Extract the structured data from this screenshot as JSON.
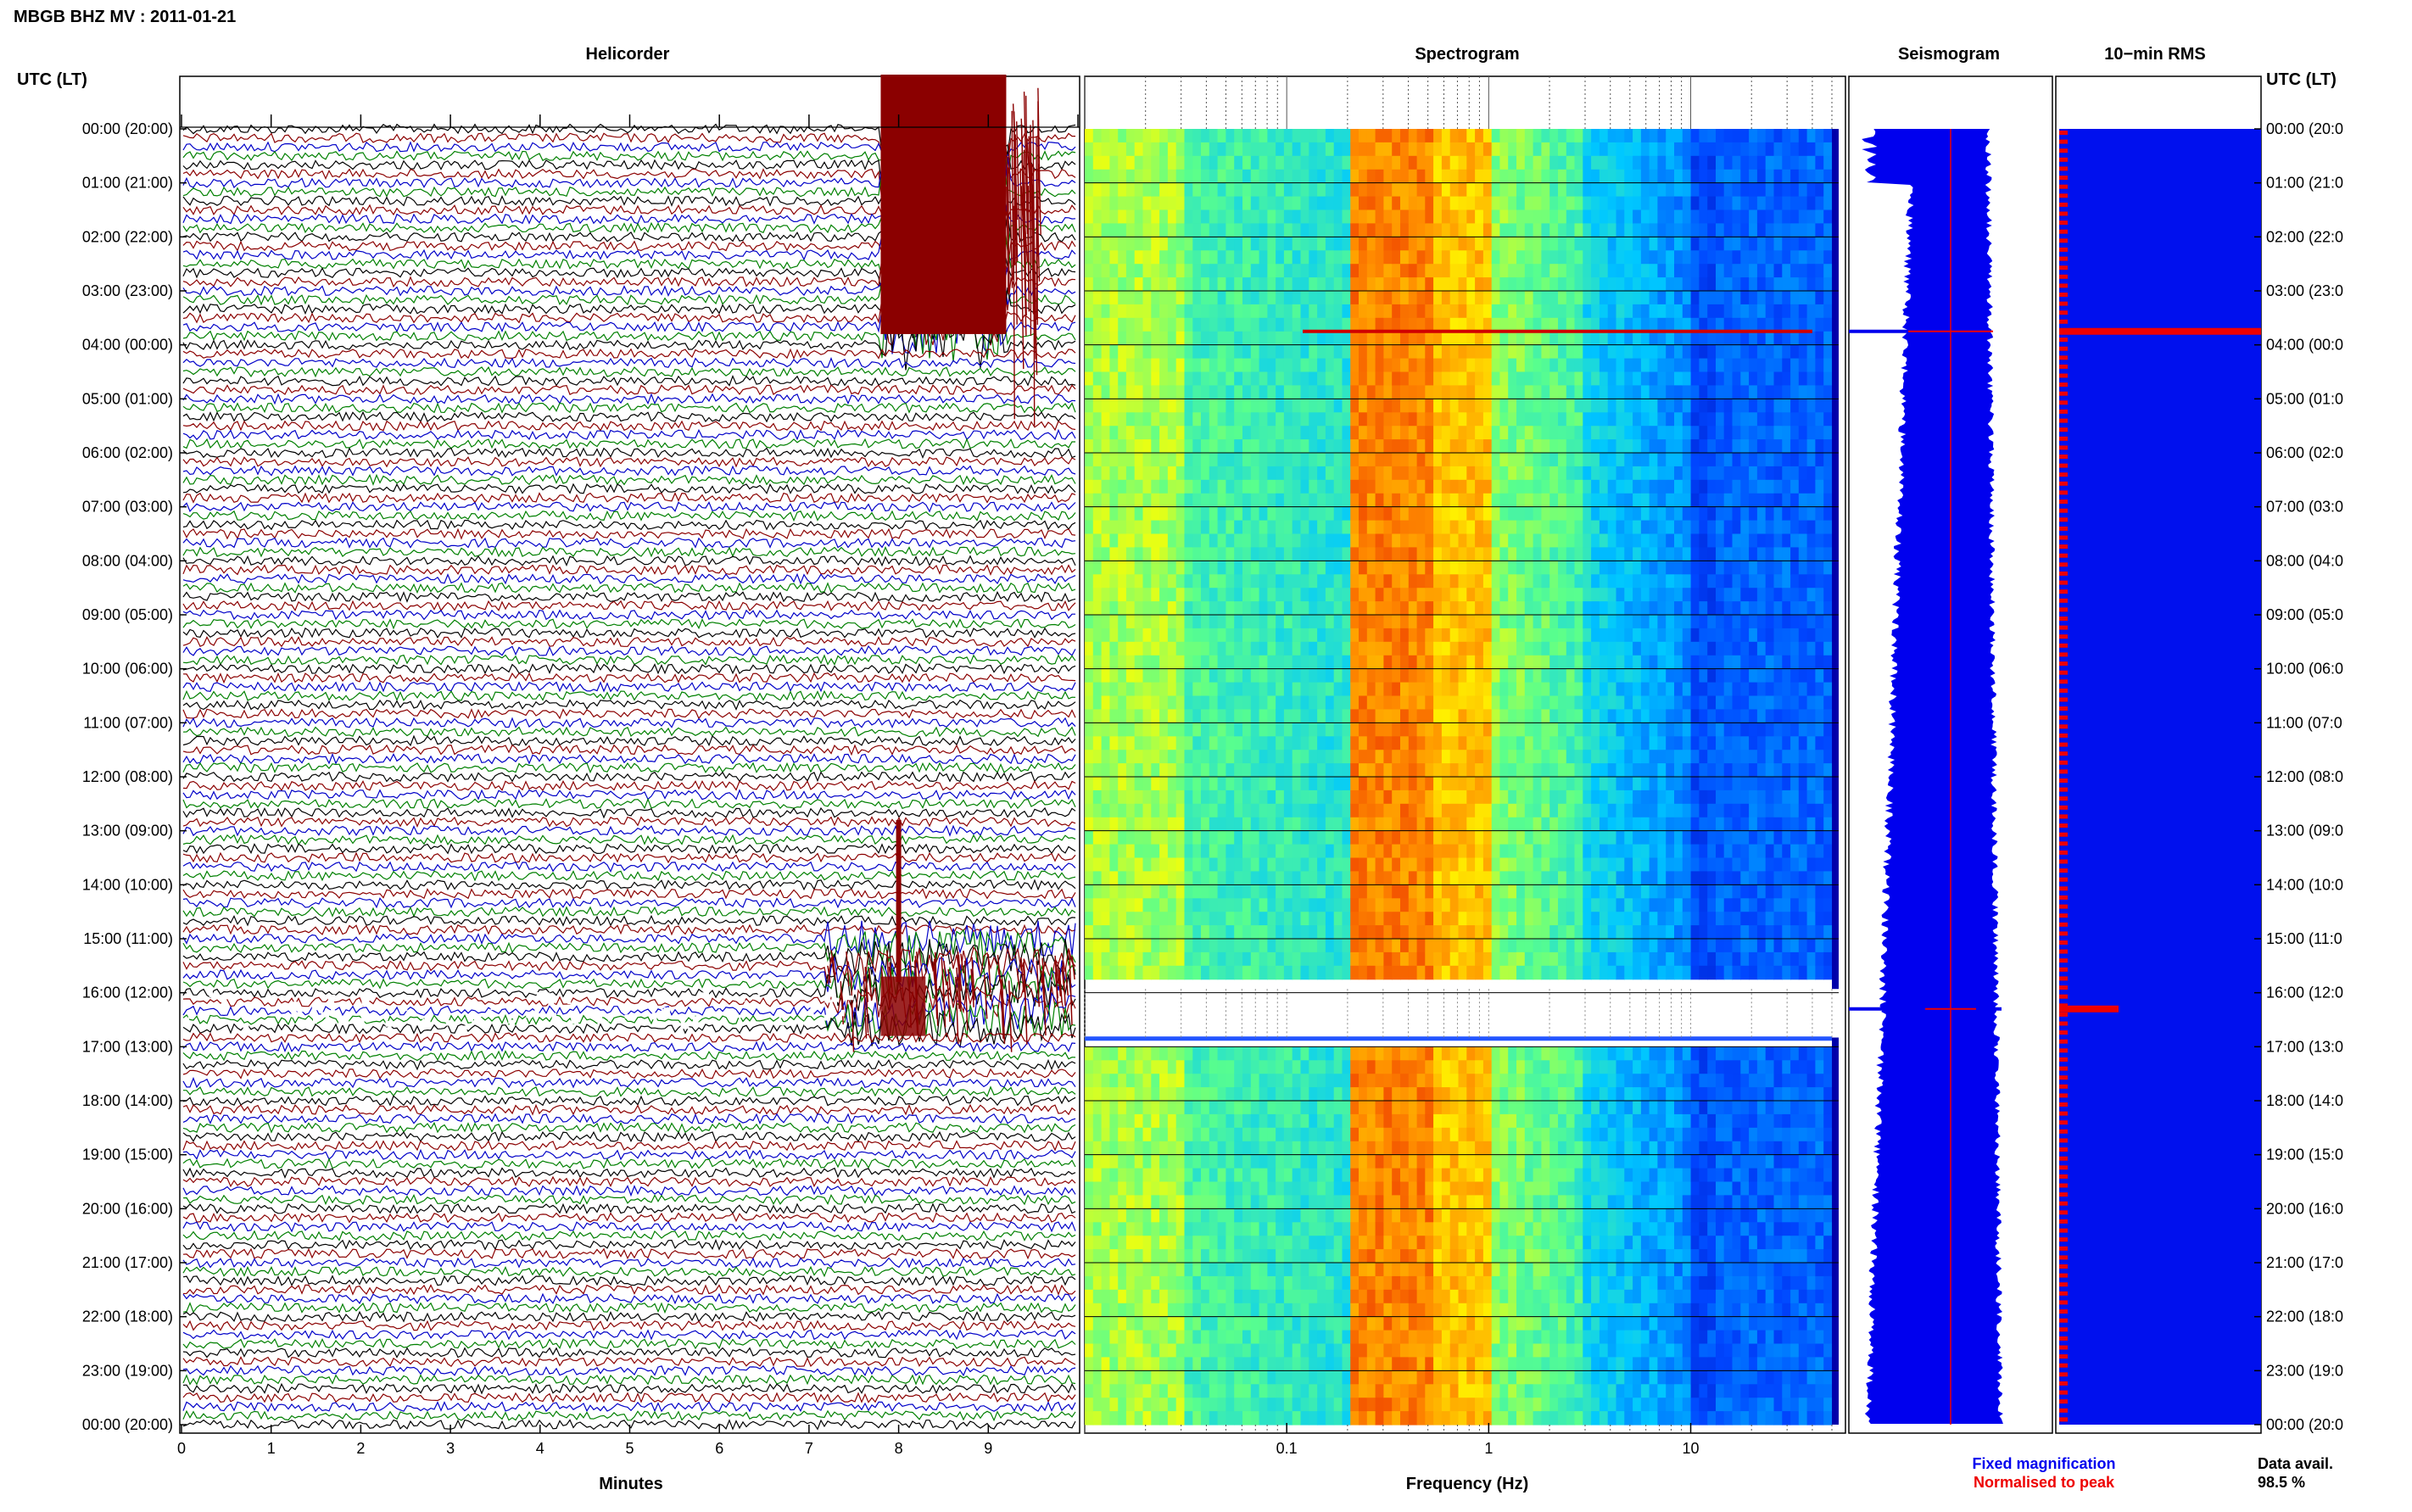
{
  "title": "MBGB BHZ MV : 2011-01-21",
  "panels": {
    "helicorder": "Helicorder",
    "spectrogram": "Spectrogram",
    "seismogram": "Seismogram",
    "rms": "10−min RMS"
  },
  "time_axis_label": "UTC (LT)",
  "time_labels_left": [
    "00:00 (20:00)",
    "01:00 (21:00)",
    "02:00 (22:00)",
    "03:00 (23:00)",
    "04:00 (00:00)",
    "05:00 (01:00)",
    "06:00 (02:00)",
    "07:00 (03:00)",
    "08:00 (04:00)",
    "09:00 (05:00)",
    "10:00 (06:00)",
    "11:00 (07:00)",
    "12:00 (08:00)",
    "13:00 (09:00)",
    "14:00 (10:00)",
    "15:00 (11:00)",
    "16:00 (12:00)",
    "17:00 (13:00)",
    "18:00 (14:00)",
    "19:00 (15:00)",
    "20:00 (16:00)",
    "21:00 (17:00)",
    "22:00 (18:00)",
    "23:00 (19:00)",
    "00:00 (20:00)"
  ],
  "time_labels_right": [
    "00:00 (20:0",
    "01:00 (21:0",
    "02:00 (22:0",
    "03:00 (23:0",
    "04:00 (00:0",
    "05:00 (01:0",
    "06:00 (02:0",
    "07:00 (03:0",
    "08:00 (04:0",
    "09:00 (05:0",
    "10:00 (06:0",
    "11:00 (07:0",
    "12:00 (08:0",
    "13:00 (09:0",
    "14:00 (10:0",
    "15:00 (11:0",
    "16:00 (12:0",
    "17:00 (13:0",
    "18:00 (14:0",
    "19:00 (15:0",
    "20:00 (16:0",
    "21:00 (17:0",
    "22:00 (18:0",
    "23:00 (19:0",
    "00:00 (20:0"
  ],
  "helicorder_xlabel": "Minutes",
  "helicorder_ticks": [
    "0",
    "1",
    "2",
    "3",
    "4",
    "5",
    "6",
    "7",
    "8",
    "9"
  ],
  "spectrogram_xlabel": "Frequency (Hz)",
  "spectrogram_ticks": [
    "0.1",
    "1",
    "10"
  ],
  "legend": {
    "fixed": "Fixed magnification",
    "normalised": "Normalised to peak",
    "fixed_color": "#0000ee",
    "normalised_color": "#ee0000"
  },
  "data_avail_label": "Data avail.",
  "data_avail_value": "98.5 %",
  "colors": {
    "trace_cycle": [
      "#000000",
      "#8b0000",
      "#0000c8",
      "#008000"
    ],
    "rms_fill": "#0010ee",
    "rms_marker": "#ee0000",
    "event_trace": "#8b0000"
  },
  "chart_data": [
    {
      "type": "line",
      "panel": "Helicorder",
      "xlabel": "Minutes",
      "xlim": [
        0,
        10
      ],
      "rows_per_hour": 6,
      "row_minutes": 10,
      "events": [
        {
          "start": "00:00",
          "end": "04:00",
          "minute_start": 7.8,
          "minute_end": 9.2,
          "note_level": "saturated"
        },
        {
          "start": "15:00",
          "end": "16:40",
          "minute_start": 7.2,
          "minute_end": 10,
          "note_level": "large"
        }
      ]
    },
    {
      "type": "heatmap",
      "panel": "Spectrogram",
      "xlabel": "Frequency (Hz)",
      "xscale": "log",
      "xlim": [
        0.01,
        50
      ],
      "bands_hz": [
        {
          "from": 0.01,
          "to": 0.03,
          "level": "mid-high"
        },
        {
          "from": 0.2,
          "to": 1.0,
          "level": "high"
        },
        {
          "from": 1.0,
          "to": 5.0,
          "level": "mid"
        },
        {
          "from": 10.0,
          "to": 50.0,
          "level": "low"
        }
      ],
      "gap_hours": [
        15.93,
        16.83
      ]
    },
    {
      "type": "area",
      "panel": "Seismogram",
      "series": [
        {
          "name": "Fixed magnification",
          "color": "#0000ee"
        },
        {
          "name": "Normalised to peak",
          "color": "#ee0000"
        }
      ],
      "spikes_hours": [
        3.75,
        16.3
      ]
    },
    {
      "type": "bar",
      "panel": "10−min RMS",
      "interval_minutes": 10,
      "peak_hours": [
        3.75,
        16.3
      ],
      "data_availability_percent": 98.5
    }
  ]
}
